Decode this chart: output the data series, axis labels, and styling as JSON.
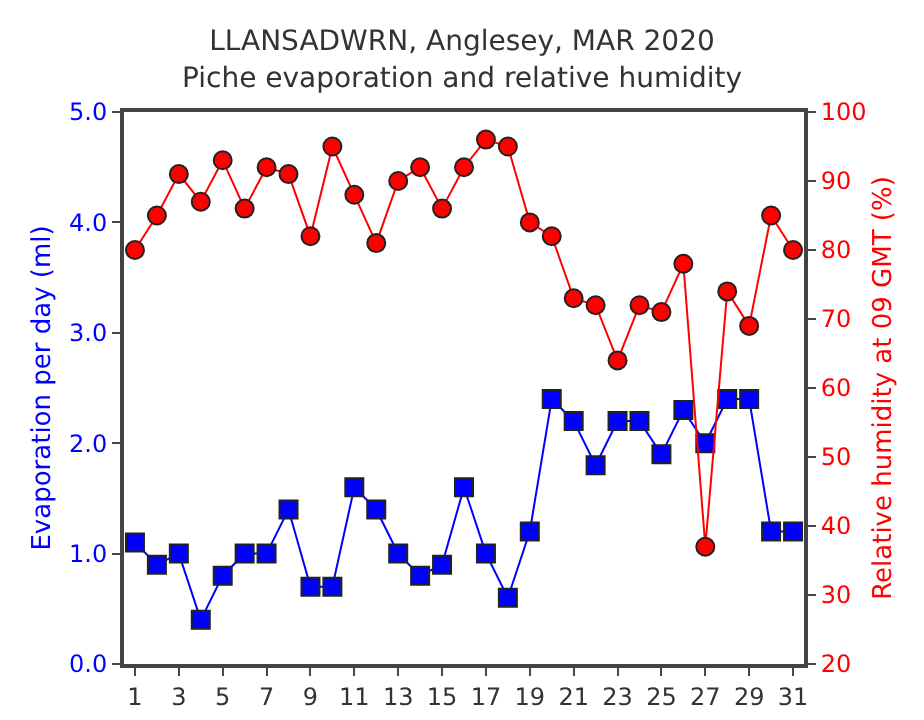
{
  "chart_data": {
    "type": "line",
    "title": "LLANSADWRN, Anglesey, MAR 2020",
    "subtitle": "Piche evaporation and relative humidity",
    "ylabel": "Evaporation per day (ml)",
    "y2label": "Relative humidity at 09 GMT (%)",
    "x": [
      1,
      2,
      3,
      4,
      5,
      6,
      7,
      8,
      9,
      10,
      11,
      12,
      13,
      14,
      15,
      16,
      17,
      18,
      19,
      20,
      21,
      22,
      23,
      24,
      25,
      26,
      27,
      28,
      29,
      30,
      31
    ],
    "series": [
      {
        "name": null,
        "color": "#0000ff",
        "marker": "square",
        "values": [
          1.1,
          0.9,
          1.0,
          0.4,
          0.8,
          1.0,
          1.0,
          1.4,
          0.7,
          0.7,
          1.6,
          1.4,
          1.0,
          0.8,
          0.9,
          1.6,
          1.0,
          0.6,
          1.2,
          2.4,
          2.2,
          1.8,
          2.2,
          2.2,
          1.9,
          2.3,
          2.0,
          2.4,
          2.4,
          1.2,
          1.2
        ]
      },
      {
        "name": null,
        "color": "#ff0000",
        "marker": "circle",
        "axis": "y2",
        "values": [
          80,
          85,
          91,
          87,
          93,
          86,
          92,
          91,
          82,
          95,
          88,
          81,
          90,
          92,
          86,
          92,
          96,
          95,
          84,
          82,
          73,
          72,
          64,
          72,
          71,
          78,
          37,
          74,
          69,
          85,
          80
        ]
      }
    ],
    "xlim": [
      0.5,
      31.5
    ],
    "xticks": [
      1,
      3,
      5,
      7,
      9,
      11,
      13,
      15,
      17,
      19,
      21,
      23,
      25,
      27,
      29,
      31
    ],
    "ylim": [
      0,
      5
    ],
    "yticks": [
      {
        "value": 0,
        "label": "0.0"
      },
      {
        "value": 1,
        "label": "1.0"
      },
      {
        "value": 2,
        "label": "2.0"
      },
      {
        "value": 3,
        "label": "3.0"
      },
      {
        "value": 4,
        "label": "4.0"
      },
      {
        "value": 5,
        "label": "5.0"
      }
    ],
    "y2lim": [
      20,
      100
    ],
    "y2ticks": [
      20,
      30,
      40,
      50,
      60,
      70,
      80,
      90,
      100
    ]
  }
}
